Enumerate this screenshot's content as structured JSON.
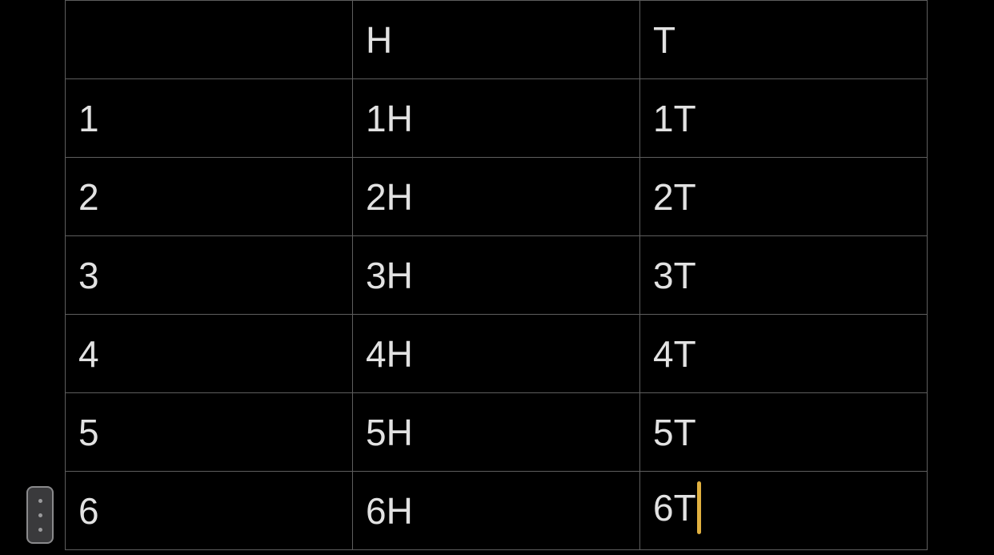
{
  "table": {
    "headers": [
      "",
      "H",
      "T"
    ],
    "rows": [
      [
        "1",
        "1H",
        "1T"
      ],
      [
        "2",
        "2H",
        "2T"
      ],
      [
        "3",
        "3H",
        "3T"
      ],
      [
        "4",
        "4H",
        "4T"
      ],
      [
        "5",
        "5H",
        "5T"
      ],
      [
        "6",
        "6H",
        "6T"
      ]
    ]
  },
  "cursor_color": "#e0b040",
  "handle_icon": "vertical-ellipsis-icon"
}
